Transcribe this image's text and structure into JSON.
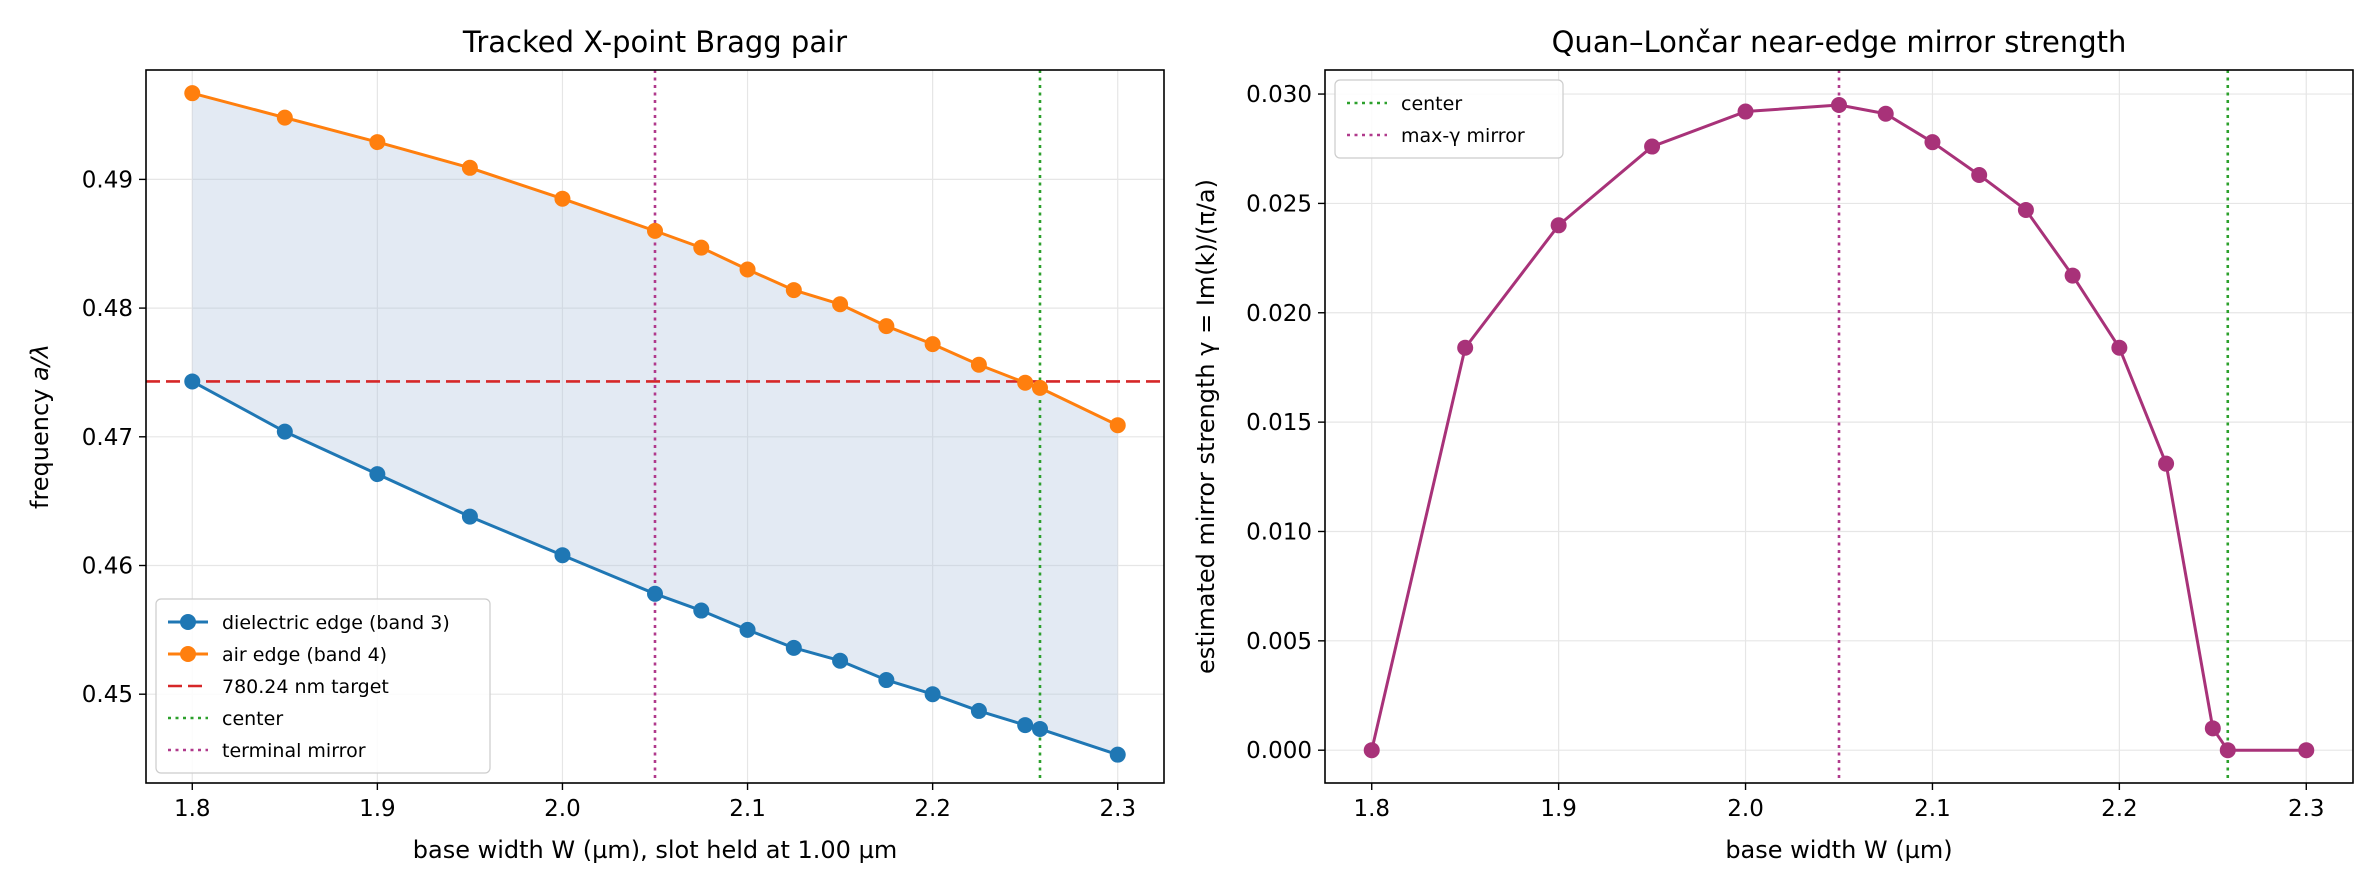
{
  "figure": {
    "background": "#ffffff"
  },
  "chart_data": [
    {
      "type": "line",
      "title": "Tracked X-point Bragg pair",
      "xlabel": "base width W (µm), slot held at 1.00 µm",
      "ylabel_prefix": "frequency ",
      "ylabel_math": "a/λ",
      "xlim": [
        1.775,
        2.325
      ],
      "ylim": [
        0.4431,
        0.4985
      ],
      "xticks": [
        1.8,
        1.9,
        2.0,
        2.1,
        2.2,
        2.3
      ],
      "xtick_labels": [
        "1.8",
        "1.9",
        "2.0",
        "2.1",
        "2.2",
        "2.3"
      ],
      "yticks": [
        0.45,
        0.46,
        0.47,
        0.48,
        0.49
      ],
      "ytick_labels": [
        "0.45",
        "0.46",
        "0.47",
        "0.48",
        "0.49"
      ],
      "grid": true,
      "legend_position": "lower-left",
      "fill_between": {
        "color": "#b0c4de",
        "opacity": 0.35
      },
      "series": [
        {
          "name": "dielectric edge (band 3)",
          "color": "#1f77b4",
          "marker": "circle",
          "x": [
            1.8,
            1.85,
            1.9,
            1.95,
            2.0,
            2.05,
            2.075,
            2.1,
            2.125,
            2.15,
            2.175,
            2.2,
            2.225,
            2.25,
            2.258,
            2.3
          ],
          "y": [
            0.4743,
            0.4704,
            0.4671,
            0.4638,
            0.4608,
            0.4578,
            0.4565,
            0.455,
            0.4536,
            0.4526,
            0.4511,
            0.45,
            0.4487,
            0.4476,
            0.4473,
            0.4453
          ]
        },
        {
          "name": "air edge (band 4)",
          "color": "#ff7f0e",
          "marker": "circle",
          "x": [
            1.8,
            1.85,
            1.9,
            1.95,
            2.0,
            2.05,
            2.075,
            2.1,
            2.125,
            2.15,
            2.175,
            2.2,
            2.225,
            2.25,
            2.258,
            2.3
          ],
          "y": [
            0.4967,
            0.4948,
            0.4929,
            0.4909,
            0.4885,
            0.486,
            0.4847,
            0.483,
            0.4814,
            0.4803,
            0.4786,
            0.4772,
            0.4756,
            0.4742,
            0.4738,
            0.4709
          ]
        }
      ],
      "hlines": [
        {
          "name": "780.24 nm target",
          "y": 0.4743,
          "color": "#d62728",
          "style": "dashed"
        }
      ],
      "vlines": [
        {
          "name": "center",
          "x": 2.258,
          "color": "#2ca02c",
          "style": "dotted"
        },
        {
          "name": "terminal mirror",
          "x": 2.05,
          "color": "#b03a8c",
          "style": "dotted"
        }
      ],
      "legend": [
        {
          "label": "dielectric edge (band 3)",
          "color": "#1f77b4",
          "kind": "line-marker"
        },
        {
          "label": "air edge (band 4)",
          "color": "#ff7f0e",
          "kind": "line-marker"
        },
        {
          "label": "780.24 nm target",
          "color": "#d62728",
          "kind": "dashed"
        },
        {
          "label": "center",
          "color": "#2ca02c",
          "kind": "dotted"
        },
        {
          "label": "terminal mirror",
          "color": "#b03a8c",
          "kind": "dotted"
        }
      ]
    },
    {
      "type": "line",
      "title": "Quan–Lončar near-edge mirror strength",
      "xlabel": "base width W (µm)",
      "ylabel": "estimated mirror strength γ = Im(k)/(π/a)",
      "xlim": [
        1.775,
        2.325
      ],
      "ylim": [
        -0.0015,
        0.0311
      ],
      "xticks": [
        1.8,
        1.9,
        2.0,
        2.1,
        2.2,
        2.3
      ],
      "xtick_labels": [
        "1.8",
        "1.9",
        "2.0",
        "2.1",
        "2.2",
        "2.3"
      ],
      "yticks": [
        0.0,
        0.005,
        0.01,
        0.015,
        0.02,
        0.025,
        0.03
      ],
      "ytick_labels": [
        "0.000",
        "0.005",
        "0.010",
        "0.015",
        "0.020",
        "0.025",
        "0.030"
      ],
      "grid": true,
      "legend_position": "upper-left",
      "series": [
        {
          "name": "",
          "color": "#a83279",
          "marker": "circle",
          "x": [
            1.8,
            1.85,
            1.9,
            1.95,
            2.0,
            2.05,
            2.075,
            2.1,
            2.125,
            2.15,
            2.175,
            2.2,
            2.225,
            2.25,
            2.258,
            2.3
          ],
          "y": [
            0.0,
            0.0184,
            0.024,
            0.0276,
            0.0292,
            0.0295,
            0.0291,
            0.0278,
            0.0263,
            0.0247,
            0.0217,
            0.0184,
            0.0131,
            0.001,
            0.0,
            0.0
          ]
        }
      ],
      "vlines": [
        {
          "name": "center",
          "x": 2.258,
          "color": "#2ca02c",
          "style": "dotted"
        },
        {
          "name": "max-γ mirror",
          "x": 2.05,
          "color": "#b03a8c",
          "style": "dotted"
        }
      ],
      "legend": [
        {
          "label": "center",
          "color": "#2ca02c",
          "kind": "dotted"
        },
        {
          "label": "max-γ mirror",
          "color": "#b03a8c",
          "kind": "dotted"
        }
      ]
    }
  ]
}
